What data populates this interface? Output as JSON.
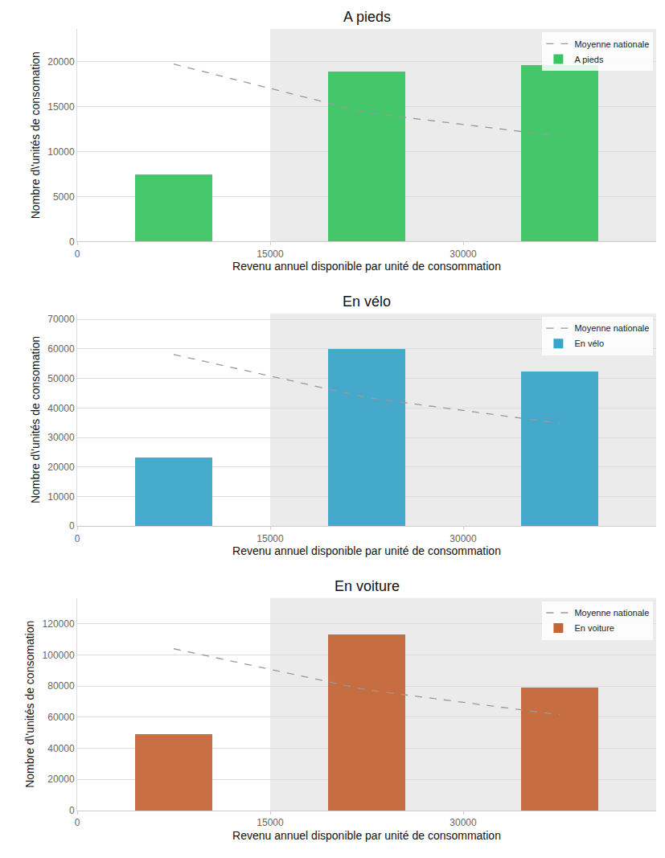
{
  "chart_data": [
    {
      "type": "bar",
      "title": "A pieds",
      "x_label": "Revenu annuel disponible par unité de consommation",
      "y_label": "Nombre d\\'unités de consomation",
      "x": [
        7500,
        22500,
        37500
      ],
      "series": [
        {
          "name": "Moyenne nationale",
          "type": "line",
          "line_style": "dashed",
          "color": "#999999",
          "values": [
            19700,
            14300,
            11700
          ]
        },
        {
          "name": "A pieds",
          "type": "bar",
          "color": "#3bc463",
          "values": [
            7400,
            18900,
            19600
          ]
        }
      ],
      "highlight": [
        15000,
        45000
      ],
      "xlim": [
        0,
        45000
      ],
      "xticks": [
        0,
        15000,
        30000
      ],
      "ylim": [
        0,
        23600
      ],
      "yticks": [
        0,
        5000,
        10000,
        15000,
        20000
      ],
      "grid": true,
      "legend": "upper right"
    },
    {
      "type": "bar",
      "title": "En vélo",
      "x_label": "Revenu annuel disponible par unité de consommation",
      "y_label": "Nombre d\\'unités de consomation",
      "x": [
        7500,
        22500,
        37500
      ],
      "series": [
        {
          "name": "Moyenne nationale",
          "type": "line",
          "line_style": "dashed",
          "color": "#999999",
          "values": [
            58100,
            43500,
            34800
          ]
        },
        {
          "name": "En vélo",
          "type": "bar",
          "color": "#39a5c8",
          "values": [
            23200,
            60000,
            52300
          ]
        }
      ],
      "highlight": [
        15000,
        45000
      ],
      "xlim": [
        0,
        45000
      ],
      "xticks": [
        0,
        15000,
        30000
      ],
      "ylim": [
        0,
        72000
      ],
      "yticks": [
        0,
        10000,
        20000,
        30000,
        40000,
        50000,
        60000,
        70000
      ],
      "grid": true,
      "legend": "upper right"
    },
    {
      "type": "bar",
      "title": "En voiture",
      "x_label": "Revenu annuel disponible par unité de consommation",
      "y_label": "Nombre d\\'unités de consomation",
      "x": [
        7500,
        22500,
        37500
      ],
      "series": [
        {
          "name": "Moyenne nationale",
          "type": "line",
          "line_style": "dashed",
          "color": "#999999",
          "values": [
            103900,
            77500,
            61500
          ]
        },
        {
          "name": "En voiture",
          "type": "bar",
          "color": "#c46536",
          "values": [
            49000,
            113500,
            79000
          ]
        }
      ],
      "highlight": [
        15000,
        45000
      ],
      "xlim": [
        0,
        45000
      ],
      "xticks": [
        0,
        15000,
        30000
      ],
      "ylim": [
        0,
        136500
      ],
      "yticks": [
        0,
        20000,
        40000,
        60000,
        80000,
        100000,
        120000
      ],
      "grid": true,
      "legend": "upper right"
    }
  ]
}
